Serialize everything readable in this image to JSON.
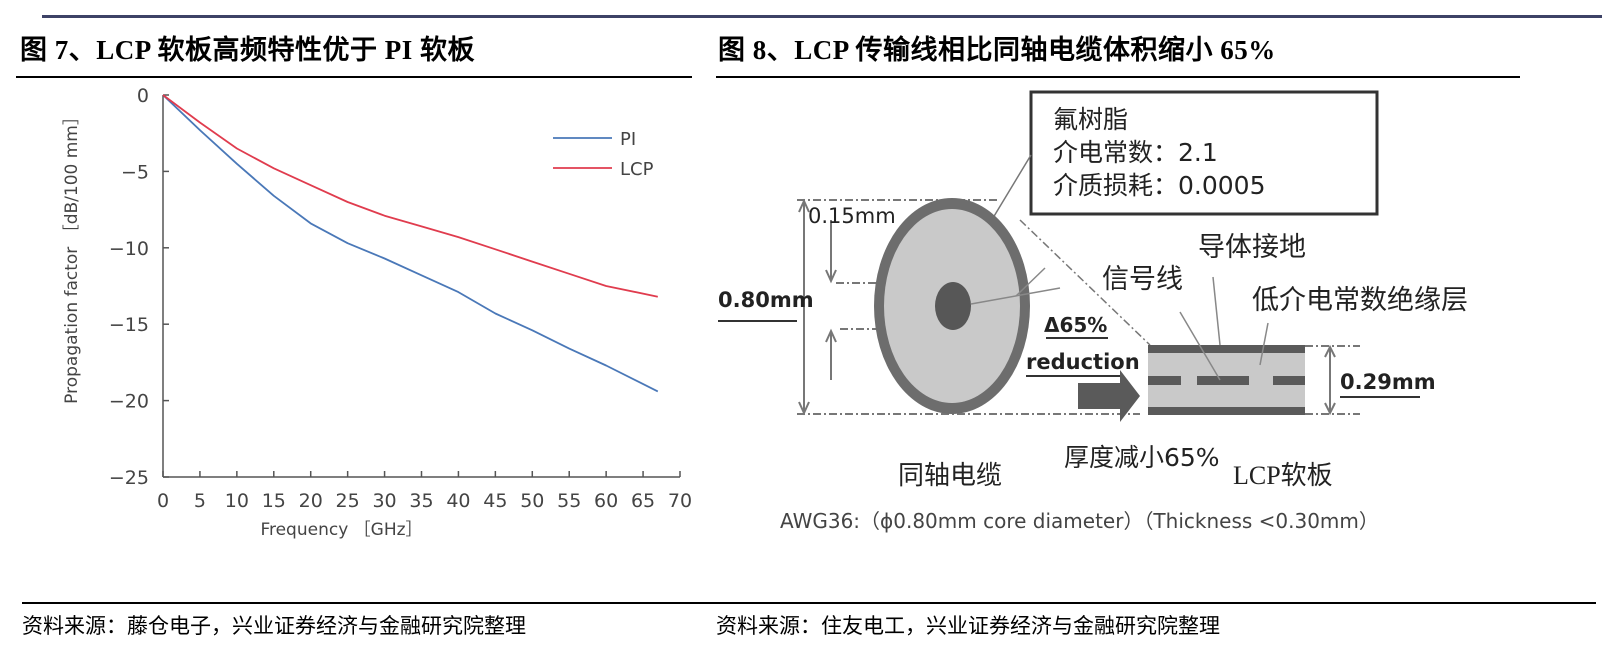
{
  "header": {
    "left_title": "图 7、LCP 软板高频特性优于 PI 软板",
    "right_title": "图 8、LCP 传输线相比同轴电缆体积缩小 65%"
  },
  "footer": {
    "left_source": "资料来源：藤仓电子，兴业证券经济与金融研究院整理",
    "right_source": "资料来源：住友电工，兴业证券经济与金融研究院整理"
  },
  "chart_data": {
    "type": "line",
    "title": "LCP 软板高频特性优于 PI 软板",
    "xlabel": "Frequency ［GHz］",
    "ylabel": "Propagation factor ［dB/100 mm］",
    "xlim": [
      0,
      70
    ],
    "ylim": [
      -25,
      0
    ],
    "x_ticks": [
      "0",
      "5",
      "10",
      "15",
      "20",
      "25",
      "30",
      "35",
      "40",
      "45",
      "50",
      "55",
      "60",
      "65",
      "70"
    ],
    "y_ticks": [
      "0",
      "−5",
      "−10",
      "−15",
      "−20",
      "−25"
    ],
    "grid": false,
    "legend_position": "upper right",
    "x": [
      0,
      5,
      10,
      15,
      20,
      25,
      30,
      35,
      40,
      45,
      50,
      55,
      60,
      67
    ],
    "series": [
      {
        "name": "PI",
        "color": "#4a78b8",
        "values": [
          0,
          -2.3,
          -4.5,
          -6.6,
          -8.4,
          -9.7,
          -10.7,
          -11.8,
          -12.9,
          -14.3,
          -15.4,
          -16.6,
          -17.7,
          -19.4
        ]
      },
      {
        "name": "LCP",
        "color": "#e03c4e",
        "values": [
          0,
          -1.8,
          -3.5,
          -4.8,
          -5.9,
          -7.0,
          -7.9,
          -8.6,
          -9.3,
          -10.1,
          -10.9,
          -11.7,
          -12.5,
          -13.2
        ]
      }
    ]
  },
  "diagram": {
    "material_box": {
      "line1": "氟树脂",
      "line2": "介电常数：2.1",
      "line3": "介质损耗：0.0005"
    },
    "dim_015": "0.15mm",
    "dim_080": "0.80mm",
    "dim_029": "0.29mm",
    "signal_line": "信号线",
    "ground_conductor": "导体接地",
    "low_dk_insulation": "低介电常数绝缘层",
    "reduction_pct": "Δ65%",
    "reduction_word": "reduction",
    "thickness_reduced": "厚度减小65%",
    "coax_label": "同轴电缆",
    "lcp_label": "LCP软板",
    "caption": "AWG36:（ϕ0.80mm core diameter）（Thickness <0.30mm）"
  }
}
